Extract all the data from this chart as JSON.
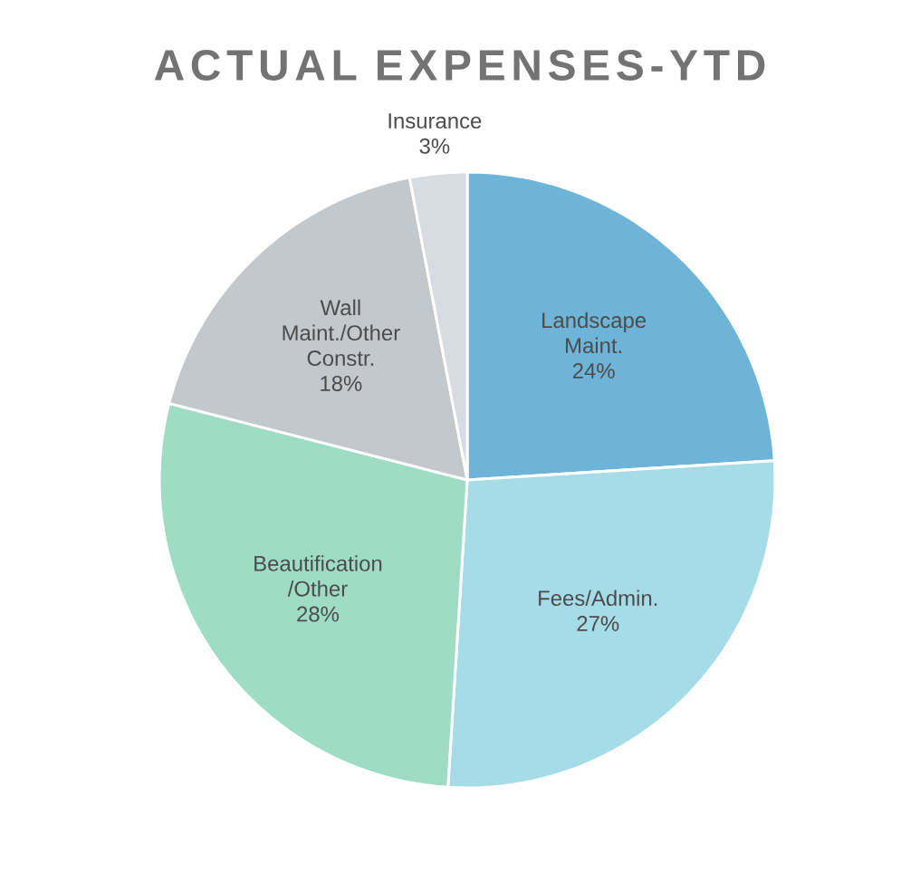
{
  "chart_data": {
    "type": "pie",
    "title": "ACTUAL EXPENSES-YTD",
    "categories": [
      "Landscape Maint.",
      "Fees/Admin.",
      "Beautification /Other",
      "Wall Maint./Other Constr.",
      "Insurance"
    ],
    "values": [
      24,
      27,
      28,
      18,
      3
    ],
    "value_labels": [
      "24%",
      "27%",
      "28%",
      "18%",
      "3%"
    ],
    "colors": [
      "#6db4d8",
      "#a6dbe8",
      "#9fdcc6",
      "#c3c8cc",
      "#d6dce2"
    ]
  }
}
